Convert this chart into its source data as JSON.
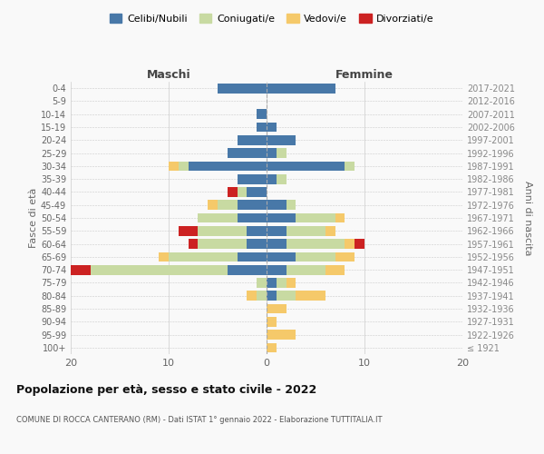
{
  "age_groups": [
    "100+",
    "95-99",
    "90-94",
    "85-89",
    "80-84",
    "75-79",
    "70-74",
    "65-69",
    "60-64",
    "55-59",
    "50-54",
    "45-49",
    "40-44",
    "35-39",
    "30-34",
    "25-29",
    "20-24",
    "15-19",
    "10-14",
    "5-9",
    "0-4"
  ],
  "birth_years": [
    "≤ 1921",
    "1922-1926",
    "1927-1931",
    "1932-1936",
    "1937-1941",
    "1942-1946",
    "1947-1951",
    "1952-1956",
    "1957-1961",
    "1962-1966",
    "1967-1971",
    "1972-1976",
    "1977-1981",
    "1982-1986",
    "1987-1991",
    "1992-1996",
    "1997-2001",
    "2002-2006",
    "2007-2011",
    "2012-2016",
    "2017-2021"
  ],
  "maschi": {
    "celibi": [
      0,
      0,
      0,
      0,
      0,
      0,
      4,
      3,
      2,
      2,
      3,
      3,
      2,
      3,
      8,
      4,
      3,
      1,
      1,
      0,
      5
    ],
    "coniugati": [
      0,
      0,
      0,
      0,
      1,
      1,
      14,
      7,
      5,
      5,
      4,
      2,
      1,
      0,
      1,
      0,
      0,
      0,
      0,
      0,
      0
    ],
    "vedovi": [
      0,
      0,
      0,
      0,
      1,
      0,
      0,
      1,
      0,
      0,
      0,
      1,
      0,
      0,
      1,
      0,
      0,
      0,
      0,
      0,
      0
    ],
    "divorziati": [
      0,
      0,
      0,
      0,
      0,
      0,
      2,
      0,
      1,
      2,
      0,
      0,
      1,
      0,
      0,
      0,
      0,
      0,
      0,
      0,
      0
    ]
  },
  "femmine": {
    "nubili": [
      0,
      0,
      0,
      0,
      1,
      1,
      2,
      3,
      2,
      2,
      3,
      2,
      0,
      1,
      8,
      1,
      3,
      1,
      0,
      0,
      7
    ],
    "coniugate": [
      0,
      0,
      0,
      0,
      2,
      1,
      4,
      4,
      6,
      4,
      4,
      1,
      0,
      1,
      1,
      1,
      0,
      0,
      0,
      0,
      0
    ],
    "vedove": [
      1,
      3,
      1,
      2,
      3,
      1,
      2,
      2,
      1,
      1,
      1,
      0,
      0,
      0,
      0,
      0,
      0,
      0,
      0,
      0,
      0
    ],
    "divorziate": [
      0,
      0,
      0,
      0,
      0,
      0,
      0,
      0,
      1,
      0,
      0,
      0,
      0,
      0,
      0,
      0,
      0,
      0,
      0,
      0,
      0
    ]
  },
  "colors": {
    "celibi_nubili": "#4878a8",
    "coniugati": "#c8daa2",
    "vedovi": "#f5c96a",
    "divorziati": "#cc2222"
  },
  "title": "Popolazione per età, sesso e stato civile - 2022",
  "subtitle": "COMUNE DI ROCCA CANTERANO (RM) - Dati ISTAT 1° gennaio 2022 - Elaborazione TUTTITALIA.IT",
  "xlabel_left": "Maschi",
  "xlabel_right": "Femmine",
  "ylabel_left": "Fasce di età",
  "ylabel_right": "Anni di nascita",
  "xlim": 20,
  "legend_labels": [
    "Celibi/Nubili",
    "Coniugati/e",
    "Vedovi/e",
    "Divorziati/e"
  ],
  "background_color": "#f9f9f9"
}
